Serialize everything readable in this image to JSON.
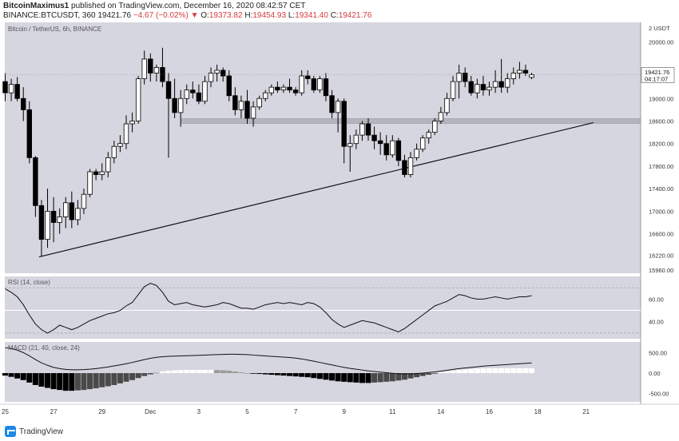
{
  "header": {
    "author": "BitcoinMaximus1",
    "published": "published on TradingView.com, December 16, 2020 08:42:57 CET",
    "symbol": "BINANCE:BTCUSDT, 360",
    "last": "19421.76",
    "change": "−4.67 (−0.02%)",
    "o_label": "O:",
    "o_value": "19373.82",
    "h_label": "H:",
    "h_value": "19454.93",
    "l_label": "L:",
    "l_value": "19341.40",
    "c_label": "C:",
    "c_value": "19421.76"
  },
  "footer": {
    "brand": "TradingView"
  },
  "colors": {
    "panel_bg": "#d6d6e0",
    "candle": "#000000",
    "candle_up_fill": "#ffffff",
    "support_band": "#b4b4bc",
    "axis_text": "#333333"
  },
  "chart_data": {
    "type": "candlestick",
    "title": "Bitcoin / TetherUS, 6h, BINANCE",
    "price_axis": {
      "unit_label": "2 USDT",
      "ticks": [
        "20000.00",
        "19000.00",
        "18600.00",
        "18200.00",
        "17800.00",
        "17400.00",
        "17000.00",
        "16600.00",
        "16220.00",
        "15960.00"
      ],
      "range": [
        15900,
        20350
      ],
      "current_price_label": "19421.76",
      "countdown_label": "04:17:07"
    },
    "x_axis": {
      "ticks": [
        "25",
        "27",
        "29",
        "Dec",
        "3",
        "5",
        "7",
        "9",
        "11",
        "14",
        "16",
        "18",
        "21"
      ],
      "tick_positions_days": [
        0,
        2,
        4,
        6,
        8,
        10,
        12,
        14,
        16,
        18,
        20,
        22,
        24
      ]
    },
    "candles": [
      {
        "o": 19300,
        "h": 19450,
        "l": 18950,
        "c": 19100
      },
      {
        "o": 19100,
        "h": 19350,
        "l": 18950,
        "c": 19250
      },
      {
        "o": 19250,
        "h": 19380,
        "l": 18950,
        "c": 19000
      },
      {
        "o": 19000,
        "h": 19200,
        "l": 18600,
        "c": 18800
      },
      {
        "o": 18800,
        "h": 18950,
        "l": 17850,
        "c": 17950
      },
      {
        "o": 17950,
        "h": 17980,
        "l": 16900,
        "c": 17100
      },
      {
        "o": 17100,
        "h": 17200,
        "l": 16200,
        "c": 16500
      },
      {
        "o": 16500,
        "h": 17400,
        "l": 16350,
        "c": 17000
      },
      {
        "o": 17000,
        "h": 17250,
        "l": 16450,
        "c": 16800
      },
      {
        "o": 16800,
        "h": 17050,
        "l": 16600,
        "c": 16900
      },
      {
        "o": 16900,
        "h": 17250,
        "l": 16700,
        "c": 17150
      },
      {
        "o": 17150,
        "h": 17350,
        "l": 16700,
        "c": 16850
      },
      {
        "o": 16850,
        "h": 17200,
        "l": 16750,
        "c": 17050
      },
      {
        "o": 17050,
        "h": 17400,
        "l": 16950,
        "c": 17300
      },
      {
        "o": 17300,
        "h": 17750,
        "l": 17250,
        "c": 17700
      },
      {
        "o": 17700,
        "h": 17750,
        "l": 17550,
        "c": 17650
      },
      {
        "o": 17650,
        "h": 17850,
        "l": 17550,
        "c": 17700
      },
      {
        "o": 17700,
        "h": 18050,
        "l": 17600,
        "c": 17950
      },
      {
        "o": 17950,
        "h": 18250,
        "l": 17850,
        "c": 18150
      },
      {
        "o": 18150,
        "h": 18350,
        "l": 18050,
        "c": 18200
      },
      {
        "o": 18200,
        "h": 18700,
        "l": 18100,
        "c": 18550
      },
      {
        "o": 18550,
        "h": 18750,
        "l": 18400,
        "c": 18600
      },
      {
        "o": 18600,
        "h": 19400,
        "l": 18550,
        "c": 19350
      },
      {
        "o": 19350,
        "h": 19850,
        "l": 19250,
        "c": 19700
      },
      {
        "o": 19700,
        "h": 19800,
        "l": 19300,
        "c": 19450
      },
      {
        "o": 19450,
        "h": 19600,
        "l": 19300,
        "c": 19550
      },
      {
        "o": 19550,
        "h": 19900,
        "l": 19200,
        "c": 19300
      },
      {
        "o": 19300,
        "h": 19450,
        "l": 17950,
        "c": 19000
      },
      {
        "o": 19000,
        "h": 19350,
        "l": 18650,
        "c": 18750
      },
      {
        "o": 18750,
        "h": 19150,
        "l": 18500,
        "c": 19000
      },
      {
        "o": 19000,
        "h": 19250,
        "l": 18900,
        "c": 19150
      },
      {
        "o": 19150,
        "h": 19300,
        "l": 19000,
        "c": 19100
      },
      {
        "o": 19100,
        "h": 19250,
        "l": 18900,
        "c": 18950
      },
      {
        "o": 18950,
        "h": 19400,
        "l": 18900,
        "c": 19300
      },
      {
        "o": 19300,
        "h": 19550,
        "l": 19200,
        "c": 19450
      },
      {
        "o": 19450,
        "h": 19600,
        "l": 19300,
        "c": 19500
      },
      {
        "o": 19500,
        "h": 19550,
        "l": 19300,
        "c": 19400
      },
      {
        "o": 19400,
        "h": 19500,
        "l": 18950,
        "c": 19050
      },
      {
        "o": 19050,
        "h": 19200,
        "l": 18700,
        "c": 18800
      },
      {
        "o": 18800,
        "h": 19050,
        "l": 18650,
        "c": 18950
      },
      {
        "o": 18950,
        "h": 19150,
        "l": 18550,
        "c": 18650
      },
      {
        "o": 18650,
        "h": 18950,
        "l": 18500,
        "c": 18850
      },
      {
        "o": 18850,
        "h": 19050,
        "l": 18800,
        "c": 19000
      },
      {
        "o": 19000,
        "h": 19150,
        "l": 18950,
        "c": 19100
      },
      {
        "o": 19100,
        "h": 19250,
        "l": 19050,
        "c": 19200
      },
      {
        "o": 19200,
        "h": 19300,
        "l": 19100,
        "c": 19150
      },
      {
        "o": 19150,
        "h": 19250,
        "l": 19100,
        "c": 19200
      },
      {
        "o": 19200,
        "h": 19350,
        "l": 19100,
        "c": 19150
      },
      {
        "o": 19150,
        "h": 19200,
        "l": 19050,
        "c": 19100
      },
      {
        "o": 19100,
        "h": 19500,
        "l": 19050,
        "c": 19400
      },
      {
        "o": 19400,
        "h": 19500,
        "l": 19250,
        "c": 19350
      },
      {
        "o": 19350,
        "h": 19400,
        "l": 19100,
        "c": 19150
      },
      {
        "o": 19150,
        "h": 19400,
        "l": 19100,
        "c": 19350
      },
      {
        "o": 19350,
        "h": 19450,
        "l": 18950,
        "c": 19050
      },
      {
        "o": 19050,
        "h": 19150,
        "l": 18650,
        "c": 18750
      },
      {
        "o": 18750,
        "h": 19000,
        "l": 18400,
        "c": 18950
      },
      {
        "o": 18950,
        "h": 19000,
        "l": 17850,
        "c": 18150
      },
      {
        "o": 18150,
        "h": 18350,
        "l": 17700,
        "c": 18200
      },
      {
        "o": 18200,
        "h": 18450,
        "l": 18100,
        "c": 18350
      },
      {
        "o": 18350,
        "h": 18600,
        "l": 18250,
        "c": 18550
      },
      {
        "o": 18550,
        "h": 18650,
        "l": 18250,
        "c": 18350
      },
      {
        "o": 18350,
        "h": 18500,
        "l": 18100,
        "c": 18250
      },
      {
        "o": 18250,
        "h": 18400,
        "l": 18000,
        "c": 18200
      },
      {
        "o": 18200,
        "h": 18350,
        "l": 17900,
        "c": 18000
      },
      {
        "o": 18000,
        "h": 18350,
        "l": 17950,
        "c": 18250
      },
      {
        "o": 18250,
        "h": 18300,
        "l": 17800,
        "c": 17900
      },
      {
        "o": 17900,
        "h": 18000,
        "l": 17600,
        "c": 17650
      },
      {
        "o": 17650,
        "h": 18050,
        "l": 17600,
        "c": 17950
      },
      {
        "o": 17950,
        "h": 18200,
        "l": 17900,
        "c": 18100
      },
      {
        "o": 18100,
        "h": 18350,
        "l": 18050,
        "c": 18300
      },
      {
        "o": 18300,
        "h": 18450,
        "l": 18200,
        "c": 18400
      },
      {
        "o": 18400,
        "h": 18650,
        "l": 18350,
        "c": 18600
      },
      {
        "o": 18600,
        "h": 18850,
        "l": 18550,
        "c": 18750
      },
      {
        "o": 18750,
        "h": 19100,
        "l": 18700,
        "c": 19000
      },
      {
        "o": 19000,
        "h": 19400,
        "l": 18950,
        "c": 19300
      },
      {
        "o": 19300,
        "h": 19600,
        "l": 19000,
        "c": 19450
      },
      {
        "o": 19450,
        "h": 19550,
        "l": 19200,
        "c": 19300
      },
      {
        "o": 19300,
        "h": 19400,
        "l": 19050,
        "c": 19100
      },
      {
        "o": 19100,
        "h": 19350,
        "l": 19000,
        "c": 19250
      },
      {
        "o": 19250,
        "h": 19400,
        "l": 19050,
        "c": 19150
      },
      {
        "o": 19150,
        "h": 19300,
        "l": 19050,
        "c": 19200
      },
      {
        "o": 19200,
        "h": 19500,
        "l": 19100,
        "c": 19300
      },
      {
        "o": 19300,
        "h": 19700,
        "l": 19100,
        "c": 19200
      },
      {
        "o": 19200,
        "h": 19450,
        "l": 19100,
        "c": 19350
      },
      {
        "o": 19350,
        "h": 19550,
        "l": 19250,
        "c": 19450
      },
      {
        "o": 19450,
        "h": 19650,
        "l": 19350,
        "c": 19500
      },
      {
        "o": 19500,
        "h": 19600,
        "l": 19400,
        "c": 19450
      },
      {
        "o": 19373.82,
        "h": 19454.93,
        "l": 19341.4,
        "c": 19421.76
      }
    ],
    "support_band": [
      18560,
      18640
    ],
    "trendline": {
      "from": {
        "day": 1.4,
        "price": 16190
      },
      "to": {
        "day": 24.3,
        "price": 18570
      }
    },
    "rsi": {
      "label": "RSI (14, close)",
      "ticks": [
        "60.00",
        "40.00"
      ],
      "range": [
        25,
        80
      ],
      "upper": 70,
      "lower": 30,
      "values": [
        69,
        66,
        62,
        55,
        46,
        38,
        33,
        30,
        33,
        37,
        35,
        33,
        35,
        38,
        41,
        43,
        45,
        47,
        48,
        50,
        54,
        57,
        64,
        71,
        74,
        72,
        66,
        58,
        55,
        56,
        57,
        55,
        54,
        53,
        54,
        55,
        57,
        56,
        54,
        52,
        52,
        51,
        53,
        55,
        56,
        57,
        56,
        57,
        56,
        55,
        57,
        56,
        53,
        48,
        42,
        38,
        35,
        37,
        39,
        41,
        40,
        39,
        37,
        35,
        33,
        31,
        34,
        38,
        42,
        46,
        50,
        54,
        56,
        58,
        61,
        64,
        63,
        61,
        60,
        60,
        61,
        62,
        61,
        60,
        61,
        62,
        62,
        63
      ],
      "ref_line": 50
    },
    "macd": {
      "label": "MACD (21, 40, close, 24)",
      "ticks": [
        "500.00",
        "0.00",
        "-500.00"
      ],
      "range": [
        -700,
        760
      ],
      "macd_line": [
        620,
        600,
        560,
        500,
        420,
        330,
        250,
        190,
        140,
        110,
        90,
        80,
        80,
        85,
        95,
        110,
        130,
        150,
        175,
        200,
        230,
        260,
        295,
        330,
        360,
        385,
        400,
        410,
        415,
        420,
        425,
        430,
        435,
        440,
        445,
        450,
        455,
        460,
        460,
        455,
        450,
        440,
        430,
        420,
        410,
        400,
        390,
        380,
        365,
        345,
        320,
        290,
        260,
        230,
        200,
        170,
        140,
        115,
        95,
        75,
        55,
        40,
        25,
        10,
        -5,
        -15,
        -20,
        -18,
        -10,
        0,
        15,
        30,
        50,
        70,
        90,
        110,
        125,
        140,
        155,
        170,
        180,
        190,
        200,
        210,
        220,
        230,
        240,
        250
      ],
      "histogram": [
        -60,
        -90,
        -130,
        -170,
        -230,
        -290,
        -330,
        -360,
        -390,
        -410,
        -430,
        -430,
        -420,
        -410,
        -390,
        -370,
        -345,
        -320,
        -290,
        -250,
        -210,
        -170,
        -120,
        -70,
        -30,
        10,
        40,
        60,
        70,
        75,
        80,
        80,
        80,
        80,
        80,
        75,
        70,
        60,
        40,
        20,
        0,
        -10,
        -20,
        -30,
        -40,
        -50,
        -60,
        -70,
        -80,
        -90,
        -100,
        -120,
        -140,
        -160,
        -180,
        -200,
        -210,
        -220,
        -230,
        -240,
        -240,
        -230,
        -220,
        -210,
        -200,
        -180,
        -160,
        -130,
        -100,
        -70,
        -40,
        -10,
        20,
        40,
        60,
        80,
        90,
        100,
        110,
        115,
        120,
        120,
        120,
        120,
        120,
        120,
        120,
        120
      ],
      "zero": 0
    }
  }
}
